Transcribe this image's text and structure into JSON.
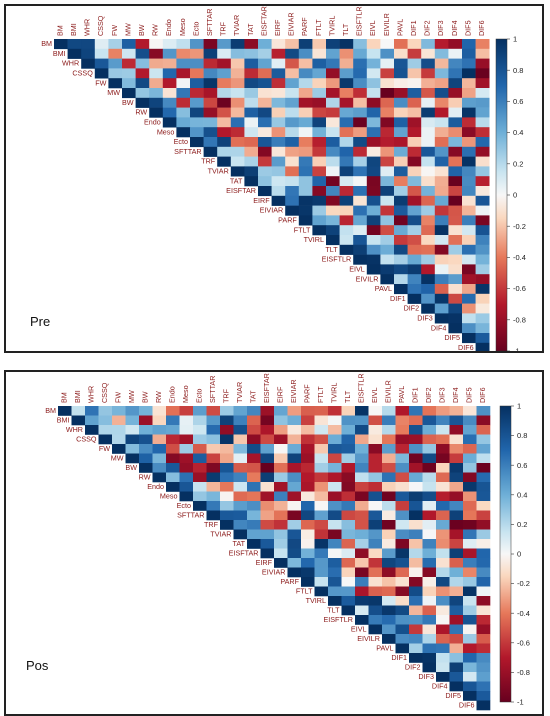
{
  "chart_data": [
    {
      "type": "heatmap",
      "title": "Pre",
      "variables": [
        "BM",
        "BMI",
        "WHR",
        "CSSQ",
        "FW",
        "MW",
        "BW",
        "RW",
        "Endo",
        "Meso",
        "Ecto",
        "SFTTAR",
        "TRF",
        "TVIAR",
        "TAT",
        "EISFTAR",
        "EIRF",
        "EIVIAR",
        "PARF",
        "FTLT",
        "TVIRL",
        "TLT",
        "EISFTLR",
        "EIVL",
        "EIVILR",
        "PAVL",
        "DIF1",
        "DIF2",
        "DIF3",
        "DIF4",
        "DIF5",
        "DIF6"
      ],
      "layout": "upper-triangle correlation matrix (diagonal = 1)",
      "colorbar": {
        "min": -1,
        "max": 1,
        "ticks": [
          1,
          0.8,
          0.6,
          0.4,
          0.2,
          0,
          -0.2,
          -0.4,
          -0.6,
          -0.8,
          -1
        ],
        "tick_labels": [
          "1",
          "0.8",
          "0.6",
          "0.4",
          "0.2",
          "0",
          "-0.2",
          "-0.4",
          "-0.6",
          "-0.8",
          "-1"
        ],
        "colormap": "red-white-blue (RdBu)"
      }
    },
    {
      "type": "heatmap",
      "title": "Pos",
      "variables": [
        "BM",
        "BMI",
        "WHR",
        "CSSQ",
        "FW",
        "MW",
        "BW",
        "RW",
        "Endo",
        "Meso",
        "Ecto",
        "SFTTAR",
        "TRF",
        "TVIAR",
        "TAT",
        "EISFTAR",
        "EIRF",
        "EIVIAR",
        "PARF",
        "FTLT",
        "TVIRL",
        "TLT",
        "EISFTLR",
        "EIVL",
        "EIVILR",
        "PAVL",
        "DIF1",
        "DIF2",
        "DIF3",
        "DIF4",
        "DIF5",
        "DIF6"
      ],
      "layout": "upper-triangle correlation matrix (diagonal = 1)",
      "colorbar": {
        "min": -1,
        "max": 1,
        "ticks": [
          1,
          0.8,
          0.6,
          0.4,
          0.2,
          0,
          -0.2,
          -0.4,
          -0.6,
          -0.8,
          -1
        ],
        "tick_labels": [
          "1",
          "0.8",
          "0.6",
          "0.4",
          "0.2",
          "0",
          "-0.2",
          "-0.4",
          "-0.6",
          "-0.8",
          "-1"
        ],
        "colormap": "red-white-blue (RdBu)"
      }
    }
  ]
}
